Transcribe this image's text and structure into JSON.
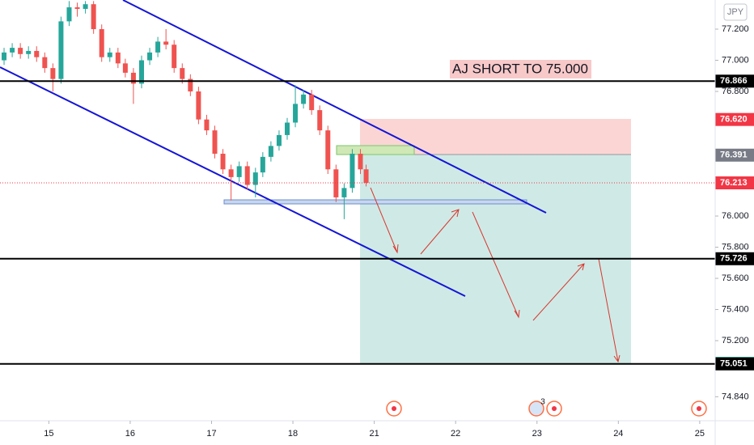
{
  "chart_data": {
    "type": "candlestick",
    "currency": "JPY",
    "annotation": "AJ SHORT TO 75.000",
    "event_badge": "3",
    "xlim": [
      -0.6,
      8.19
    ],
    "ylim": [
      74.686,
      77.387
    ],
    "xticks": [
      {
        "value": 0,
        "label": "15"
      },
      {
        "value": 1,
        "label": "16"
      },
      {
        "value": 2,
        "label": "17"
      },
      {
        "value": 3,
        "label": "18"
      },
      {
        "value": 4,
        "label": "21"
      },
      {
        "value": 5,
        "label": "22"
      },
      {
        "value": 6,
        "label": "23"
      },
      {
        "value": 7,
        "label": "24"
      },
      {
        "value": 8,
        "label": "25"
      }
    ],
    "yticks": [
      {
        "value": 77.2,
        "label": "77.200"
      },
      {
        "value": 77.0,
        "label": "77.000"
      },
      {
        "value": 76.8,
        "label": "76.800"
      },
      {
        "value": 76.0,
        "label": "76.000"
      },
      {
        "value": 75.8,
        "label": "75.800"
      },
      {
        "value": 75.6,
        "label": "75.600"
      },
      {
        "value": 75.4,
        "label": "75.400"
      },
      {
        "value": 75.2,
        "label": "75.200"
      },
      {
        "value": 74.84,
        "label": "74.840"
      }
    ],
    "up_color": "#26a69a",
    "down_color": "#ef5350",
    "x": [
      -0.55,
      -0.45,
      -0.35,
      -0.25,
      -0.15,
      -0.05,
      0.05,
      0.15,
      0.25,
      0.35,
      0.45,
      0.55,
      0.65,
      0.75,
      0.85,
      0.94,
      1.04,
      1.14,
      1.24,
      1.34,
      1.44,
      1.54,
      1.64,
      1.74,
      1.84,
      1.94,
      2.04,
      2.14,
      2.24,
      2.34,
      2.44,
      2.54,
      2.63,
      2.73,
      2.83,
      2.93,
      3.03,
      3.13,
      3.23,
      3.33,
      3.43,
      3.53,
      3.63,
      3.73,
      3.83,
      3.9
    ],
    "open": [
      77.0,
      77.05,
      77.08,
      77.04,
      77.06,
      77.02,
      76.95,
      76.88,
      77.25,
      77.34,
      77.33,
      77.36,
      77.2,
      77.02,
      77.05,
      76.98,
      76.92,
      76.85,
      77.0,
      77.05,
      77.12,
      77.1,
      76.95,
      76.88,
      76.8,
      76.62,
      76.55,
      76.4,
      76.3,
      76.25,
      76.32,
      76.2,
      76.28,
      76.38,
      76.45,
      76.52,
      76.6,
      76.72,
      76.78,
      76.68,
      76.55,
      76.3,
      76.12,
      76.18,
      76.4,
      76.3
    ],
    "high": [
      77.08,
      77.11,
      77.11,
      77.09,
      77.09,
      77.05,
      76.98,
      77.28,
      77.38,
      77.37,
      77.38,
      77.38,
      77.23,
      77.08,
      77.08,
      77.01,
      76.95,
      77.03,
      77.08,
      77.15,
      77.2,
      77.13,
      76.98,
      76.91,
      76.83,
      76.65,
      76.58,
      76.43,
      76.33,
      76.35,
      76.35,
      76.31,
      76.41,
      76.48,
      76.55,
      76.63,
      76.84,
      76.81,
      76.81,
      76.71,
      76.58,
      76.33,
      76.21,
      76.43,
      76.43,
      76.33
    ],
    "low": [
      76.97,
      77.02,
      77.01,
      77.01,
      76.99,
      76.92,
      76.8,
      76.85,
      77.22,
      77.28,
      77.3,
      77.17,
      76.99,
      76.99,
      76.95,
      76.89,
      76.72,
      76.82,
      76.97,
      77.02,
      77.07,
      76.92,
      76.85,
      76.77,
      76.59,
      76.52,
      76.37,
      76.27,
      76.1,
      76.22,
      76.17,
      76.12,
      76.25,
      76.35,
      76.42,
      76.49,
      76.57,
      76.69,
      76.65,
      76.52,
      76.27,
      76.09,
      75.98,
      76.15,
      76.27,
      76.19
    ],
    "close": [
      77.05,
      77.08,
      77.04,
      77.06,
      77.02,
      76.95,
      76.88,
      77.25,
      77.34,
      77.33,
      77.36,
      77.2,
      77.02,
      77.05,
      76.98,
      76.92,
      76.85,
      77.0,
      77.05,
      77.12,
      77.1,
      76.95,
      76.88,
      76.8,
      76.62,
      76.55,
      76.4,
      76.3,
      76.25,
      76.32,
      76.2,
      76.28,
      76.38,
      76.45,
      76.52,
      76.6,
      76.72,
      76.78,
      76.68,
      76.55,
      76.3,
      76.12,
      76.18,
      76.4,
      76.3,
      76.213
    ],
    "levels": [
      {
        "value": 76.866,
        "label": "76.866",
        "color": "#000000",
        "line": "solid"
      },
      {
        "value": 76.62,
        "label": "76.620",
        "color": "#f23645",
        "line": "none"
      },
      {
        "value": 76.391,
        "label": "76.391",
        "color": "#787b86",
        "line": "none"
      },
      {
        "value": 76.213,
        "label": "76.213",
        "color": "#f23645",
        "line": "dotted"
      },
      {
        "value": 75.726,
        "label": "75.726",
        "color": "#000000",
        "line": "solid"
      },
      {
        "value": 75.054,
        "label": "75.054",
        "color": "#22ab94",
        "line": "none"
      },
      {
        "value": 75.051,
        "label": "75.051",
        "color": "#000000",
        "line": "solid"
      }
    ]
  }
}
